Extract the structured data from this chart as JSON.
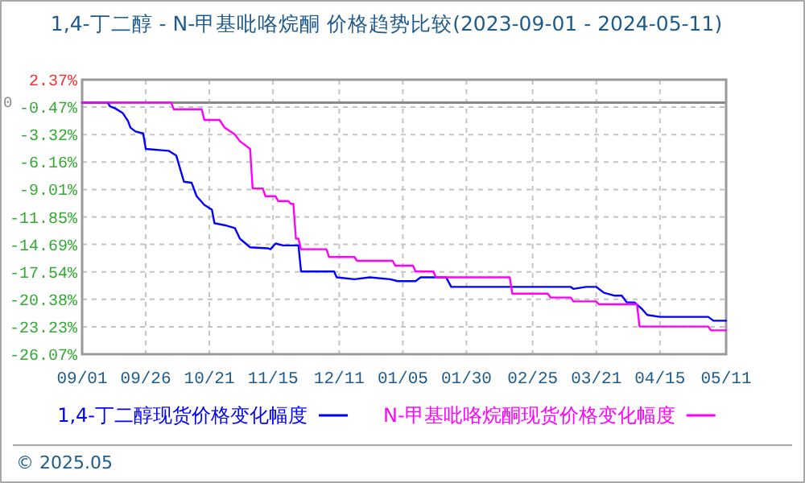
{
  "chart_data": {
    "type": "line",
    "title": "1,4-丁二醇 - N-甲基吡咯烷酮 价格趋势比较(2023-09-01 - 2024-05-11)",
    "xlim": [
      "2023-09-01",
      "2024-05-11"
    ],
    "xticks": [
      {
        "value": "2023-09-01",
        "label": "09/01"
      },
      {
        "value": "2023-09-26",
        "label": "09/26"
      },
      {
        "value": "2023-10-21",
        "label": "10/21"
      },
      {
        "value": "2023-11-15",
        "label": "11/15"
      },
      {
        "value": "2023-12-11",
        "label": "12/11"
      },
      {
        "value": "2024-01-05",
        "label": "01/05"
      },
      {
        "value": "2024-01-30",
        "label": "01/30"
      },
      {
        "value": "2024-02-25",
        "label": "02/25"
      },
      {
        "value": "2024-03-21",
        "label": "03/21"
      },
      {
        "value": "2024-04-15",
        "label": "04/15"
      },
      {
        "value": "2024-05-11",
        "label": "05/11"
      }
    ],
    "ylim": [
      -26.07,
      2.37
    ],
    "yticks": [
      {
        "value": 2.37,
        "label": "2.37%"
      },
      {
        "value": -0.47,
        "label": "-0.47%"
      },
      {
        "value": -3.32,
        "label": "-3.32%"
      },
      {
        "value": -6.16,
        "label": "-6.16%"
      },
      {
        "value": -9.01,
        "label": "-9.01%"
      },
      {
        "value": -11.85,
        "label": "-11.85%"
      },
      {
        "value": -14.69,
        "label": "-14.69%"
      },
      {
        "value": -17.54,
        "label": "-17.54%"
      },
      {
        "value": -20.38,
        "label": "-20.38%"
      },
      {
        "value": -23.23,
        "label": "-23.23%"
      },
      {
        "value": -26.07,
        "label": "-26.07%"
      }
    ],
    "grid": true,
    "legend": "bottom",
    "ref_lines": [
      {
        "axis": "y",
        "value": 0,
        "label": "0",
        "color": "#888888"
      }
    ],
    "annotations": [
      "© 2025.05"
    ],
    "series": [
      {
        "name": "1,4-丁二醇现货价格变化幅度",
        "color": "#0000ff",
        "x": [
          "2023-09-01",
          "2023-09-11",
          "2023-09-12",
          "2023-09-14",
          "2023-09-17",
          "2023-09-19",
          "2023-09-20",
          "2023-09-22",
          "2023-09-25",
          "2023-09-26",
          "2023-10-05",
          "2023-10-08",
          "2023-10-09",
          "2023-10-11",
          "2023-10-14",
          "2023-10-16",
          "2023-10-19",
          "2023-10-22",
          "2023-10-23",
          "2023-10-27",
          "2023-10-31",
          "2023-11-02",
          "2023-11-06",
          "2023-11-13",
          "2023-11-14",
          "2023-11-16",
          "2023-11-19",
          "2023-11-25",
          "2023-11-26",
          "2023-12-09",
          "2023-12-10",
          "2023-12-17",
          "2023-12-23",
          "2023-12-31",
          "2024-01-03",
          "2024-01-10",
          "2024-01-12",
          "2024-01-22",
          "2024-01-24",
          "2024-03-11",
          "2024-03-12",
          "2024-03-17",
          "2024-03-21",
          "2024-03-24",
          "2024-03-28",
          "2024-03-31",
          "2024-04-02",
          "2024-04-05",
          "2024-04-08",
          "2024-04-10",
          "2024-04-15",
          "2024-05-04",
          "2024-05-06",
          "2024-05-11"
        ],
        "values": [
          0,
          0,
          -0.4,
          -0.6,
          -1.1,
          -1.9,
          -2.6,
          -3.0,
          -3.2,
          -4.8,
          -5.0,
          -5.5,
          -6.4,
          -8.2,
          -8.3,
          -9.7,
          -10.6,
          -11.1,
          -12.5,
          -12.7,
          -13.0,
          -14.1,
          -15.0,
          -15.1,
          -15.2,
          -14.6,
          -14.8,
          -14.8,
          -17.5,
          -17.5,
          -18.1,
          -18.3,
          -18.1,
          -18.3,
          -18.5,
          -18.5,
          -18.1,
          -18.1,
          -19.1,
          -19.1,
          -19.3,
          -19.1,
          -19.1,
          -19.7,
          -20.0,
          -20.0,
          -20.7,
          -20.7,
          -21.4,
          -22.0,
          -22.2,
          -22.2,
          -22.6,
          -22.6
        ]
      },
      {
        "name": "N-甲基吡咯烷酮现货价格变化幅度",
        "color": "#ff00ff",
        "x": [
          "2023-09-01",
          "2023-10-06",
          "2023-10-07",
          "2023-10-18",
          "2023-10-19",
          "2023-10-25",
          "2023-10-27",
          "2023-10-31",
          "2023-11-02",
          "2023-11-06",
          "2023-11-07",
          "2023-11-11",
          "2023-11-12",
          "2023-11-16",
          "2023-11-17",
          "2023-11-21",
          "2023-11-22",
          "2023-11-23",
          "2023-11-24",
          "2023-11-25",
          "2023-11-26",
          "2023-12-06",
          "2023-12-07",
          "2023-12-17",
          "2023-12-18",
          "2024-01-01",
          "2024-01-02",
          "2024-01-09",
          "2024-01-10",
          "2024-01-17",
          "2024-01-18",
          "2024-02-16",
          "2024-02-17",
          "2024-03-02",
          "2024-03-03",
          "2024-03-11",
          "2024-03-12",
          "2024-03-21",
          "2024-03-22",
          "2024-04-06",
          "2024-04-07",
          "2024-05-04",
          "2024-05-05",
          "2024-05-11"
        ],
        "values": [
          0,
          0,
          -0.7,
          -0.7,
          -1.8,
          -1.8,
          -2.6,
          -3.3,
          -4.0,
          -4.8,
          -8.9,
          -8.9,
          -9.7,
          -9.7,
          -10.2,
          -10.2,
          -10.5,
          -10.5,
          -14.1,
          -14.1,
          -15.2,
          -15.2,
          -16.0,
          -16.0,
          -16.4,
          -16.4,
          -16.9,
          -16.9,
          -17.5,
          -17.5,
          -18.1,
          -18.1,
          -19.8,
          -19.8,
          -20.2,
          -20.2,
          -20.6,
          -20.6,
          -20.9,
          -20.9,
          -23.2,
          -23.2,
          -23.6,
          -23.6
        ]
      }
    ]
  }
}
